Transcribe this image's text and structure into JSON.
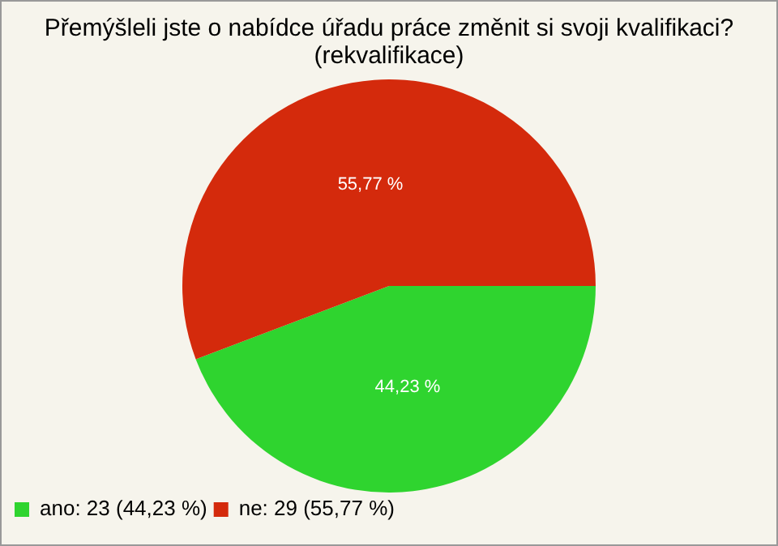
{
  "chart_data": {
    "type": "pie",
    "title": "Přemýšleli jste o nabídce úřadu práce změnit si svoji kvalifikaci? (rekvalifikace)",
    "categories": [
      "ano: 23 (44,23 %)",
      "ne: 29 (55,77 %)"
    ],
    "values": [
      44.23,
      55.77
    ],
    "value_labels": [
      "44,23 %",
      "55,77 %"
    ],
    "colors": [
      "#2fd42f",
      "#d42a0c"
    ],
    "legend": "bottom left"
  }
}
